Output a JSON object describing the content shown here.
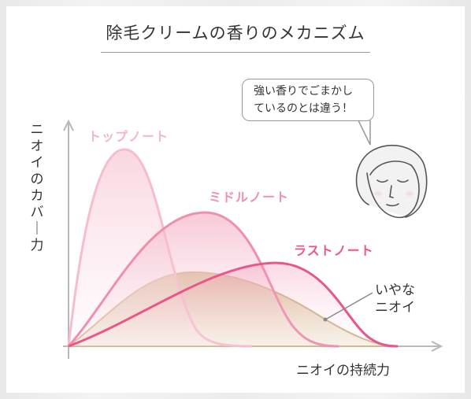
{
  "title": "除毛クリームの香りのメカニズム",
  "bubble": {
    "line1": "強い香りでごまかし",
    "line2": "ているのとは違う！"
  },
  "axes": {
    "y_label": "ニオイのカバー力",
    "x_label": "ニオイの持続力"
  },
  "labels": {
    "top_note": "トップノート",
    "middle_note": "ミドルノート",
    "last_note": "ラストノート",
    "bad_smell_line1": "いやな",
    "bad_smell_line2": "ニオイ"
  },
  "colors": {
    "top_note": "#f6c3d2",
    "middle_note": "#ef92ae",
    "last_note": "#e95b8c",
    "bad_smell": "#d2bb8c"
  }
}
